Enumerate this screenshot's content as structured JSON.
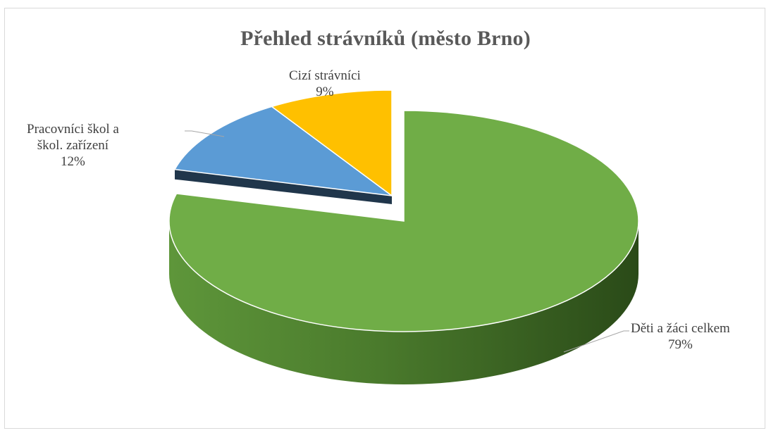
{
  "chart_data": {
    "type": "pie",
    "title": "Přehled strávníků (město Brno)",
    "slices": [
      {
        "label": "Děti a žáci celkem",
        "value": 79,
        "value_label": "79%",
        "color": "#70ad47"
      },
      {
        "label": "Pracovníci škol a škol. zařízení",
        "label_lines": [
          "Pracovníci škol a",
          "škol. zařízení"
        ],
        "value": 12,
        "value_label": "12%",
        "color": "#5b9bd5"
      },
      {
        "label": "Cizí strávníci",
        "value": 9,
        "value_label": "9%",
        "color": "#ffc000"
      }
    ],
    "style": "3d-pie-exploded"
  }
}
